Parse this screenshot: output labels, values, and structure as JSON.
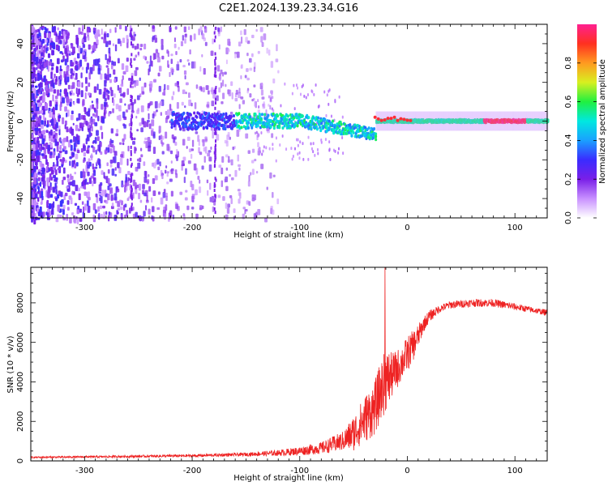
{
  "title": "C2E1.2024.139.23.34.G16",
  "chart_data": [
    {
      "type": "heatmap",
      "xlabel": "Height of straight line (km)",
      "ylabel": "Frequency (Hz)",
      "xlim": [
        -350,
        130
      ],
      "ylim": [
        -50,
        50
      ],
      "xticks": [
        -300,
        -200,
        -100,
        0,
        100
      ],
      "yticks": [
        -40,
        -20,
        0,
        20,
        40
      ],
      "colorbar": {
        "label": "Normalized spectral amplitude",
        "range": [
          0,
          1
        ],
        "ticks": [
          "0.0",
          "0.2",
          "0.4",
          "0.6",
          "0.8"
        ],
        "colormap": [
          "#ffffff",
          "#c890ff",
          "#7a1fe8",
          "#3a2cff",
          "#1aa0ff",
          "#00e8e0",
          "#20f040",
          "#d8f020",
          "#ff9a20",
          "#ff3020",
          "#ff2090"
        ]
      },
      "description_points": [
        {
          "x": -100,
          "y": 0,
          "value": 0.4
        },
        {
          "x": 0,
          "y": 0,
          "value": 0.55
        },
        {
          "x": 100,
          "y": 0,
          "value": 0.95
        }
      ]
    },
    {
      "type": "line",
      "xlabel": "Height of straight line (km)",
      "ylabel": "SNR (10 * v/v)",
      "xlim": [
        -350,
        130
      ],
      "ylim": [
        0,
        9800
      ],
      "xticks": [
        -300,
        -200,
        -100,
        0,
        100
      ],
      "yticks": [
        0,
        2000,
        4000,
        6000,
        8000
      ],
      "color": "#ee2222",
      "x": [
        -350,
        -300,
        -250,
        -200,
        -150,
        -120,
        -100,
        -80,
        -60,
        -50,
        -40,
        -30,
        -25,
        -20,
        -15,
        -10,
        -5,
        0,
        5,
        10,
        15,
        20,
        25,
        30,
        40,
        60,
        80,
        100,
        120,
        130
      ],
      "y": [
        180,
        200,
        230,
        260,
        330,
        400,
        500,
        650,
        1000,
        1400,
        2100,
        2700,
        3500,
        4100,
        4300,
        4600,
        5000,
        5400,
        5800,
        6300,
        6900,
        7300,
        7500,
        7700,
        7900,
        8000,
        8000,
        7800,
        7600,
        7500
      ],
      "noise": [
        40,
        50,
        60,
        70,
        90,
        150,
        220,
        300,
        500,
        900,
        1200,
        1400,
        1500,
        1600,
        1200,
        1000,
        900,
        900,
        800,
        600,
        400,
        300,
        250,
        200,
        200,
        200,
        200,
        180,
        150,
        150
      ]
    }
  ]
}
